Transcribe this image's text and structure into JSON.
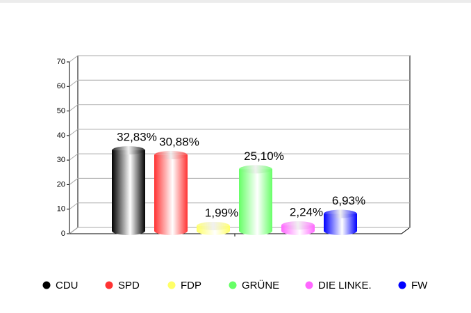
{
  "chart_data": {
    "type": "bar",
    "series": [
      {
        "name": "CDU",
        "color": "#000000",
        "values": [
          32.83
        ],
        "value_labels": [
          "32,83%"
        ]
      },
      {
        "name": "SPD",
        "color": "#ff3333",
        "values": [
          30.88
        ],
        "value_labels": [
          "30,88%"
        ]
      },
      {
        "name": "FDP",
        "color": "#ffff66",
        "values": [
          1.99
        ],
        "value_labels": [
          "1,99%"
        ]
      },
      {
        "name": "GRÜNE",
        "color": "#66ff66",
        "values": [
          25.1
        ],
        "value_labels": [
          "25,10%"
        ]
      },
      {
        "name": "DIE LINKE.",
        "color": "#ff66ff",
        "values": [
          2.24
        ],
        "value_labels": [
          "2,24%"
        ]
      },
      {
        "name": "FW",
        "color": "#0000ff",
        "values": [
          6.93
        ],
        "value_labels": [
          "6,93%"
        ]
      }
    ],
    "ylim": [
      0,
      70
    ],
    "yticks": [
      0,
      10,
      20,
      30,
      40,
      50,
      60,
      70
    ],
    "grid": true,
    "legend": "bottom"
  }
}
